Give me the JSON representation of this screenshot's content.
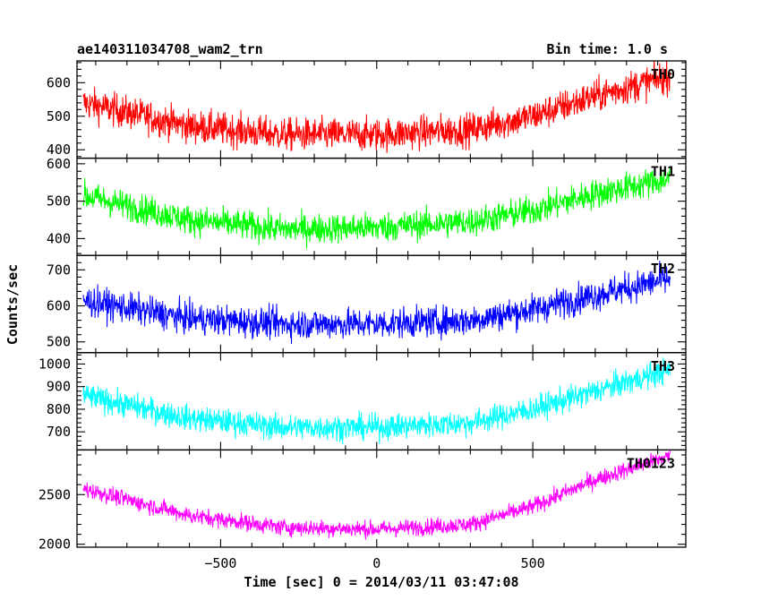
{
  "header": {
    "title": "ae140311034708_wam2_trn",
    "bin_time": "Bin time: 1.0 s"
  },
  "chart_data": {
    "type": "line",
    "xlabel": "Time [sec] 0 = 2014/03/11 03:47:08",
    "ylabel": "Counts/sec",
    "xlim": [
      -960,
      990
    ],
    "x_ticks": [
      -500,
      0,
      500
    ],
    "x_range_data": [
      -940,
      940
    ],
    "grid": false,
    "panels": [
      {
        "name": "TH0",
        "color": "#ff0000",
        "ylim": [
          375,
          665
        ],
        "y_ticks": [
          400,
          500,
          600
        ],
        "trend": {
          "x": [
            -940,
            -600,
            -300,
            0,
            300,
            500,
            700,
            940
          ],
          "y": [
            540,
            470,
            445,
            445,
            460,
            500,
            560,
            620
          ]
        },
        "noise": 35
      },
      {
        "name": "TH1",
        "color": "#00ff00",
        "ylim": [
          355,
          615
        ],
        "y_ticks": [
          400,
          500,
          600
        ],
        "trend": {
          "x": [
            -940,
            -600,
            -300,
            0,
            300,
            500,
            700,
            940
          ],
          "y": [
            515,
            450,
            425,
            430,
            445,
            475,
            520,
            560
          ]
        },
        "noise": 28
      },
      {
        "name": "TH2",
        "color": "#0000ff",
        "ylim": [
          470,
          740
        ],
        "y_ticks": [
          500,
          600,
          700
        ],
        "trend": {
          "x": [
            -940,
            -600,
            -300,
            0,
            300,
            500,
            700,
            940
          ],
          "y": [
            615,
            565,
            550,
            550,
            560,
            590,
            630,
            675
          ]
        },
        "noise": 30
      },
      {
        "name": "TH3",
        "color": "#00ffff",
        "ylim": [
          620,
          1050
        ],
        "y_ticks": [
          700,
          800,
          900,
          1000
        ],
        "trend": {
          "x": [
            -940,
            -600,
            -300,
            0,
            300,
            500,
            700,
            940
          ],
          "y": [
            860,
            760,
            720,
            720,
            740,
            800,
            880,
            975
          ]
        },
        "noise": 40
      },
      {
        "name": "TH0123",
        "color": "#ff00ff",
        "ylim": [
          1970,
          2950
        ],
        "y_ticks": [
          2000,
          2500
        ],
        "trend": {
          "x": [
            -940,
            -600,
            -300,
            0,
            300,
            500,
            700,
            940
          ],
          "y": [
            2560,
            2290,
            2170,
            2150,
            2200,
            2380,
            2650,
            2890
          ]
        },
        "noise": 60
      }
    ]
  }
}
